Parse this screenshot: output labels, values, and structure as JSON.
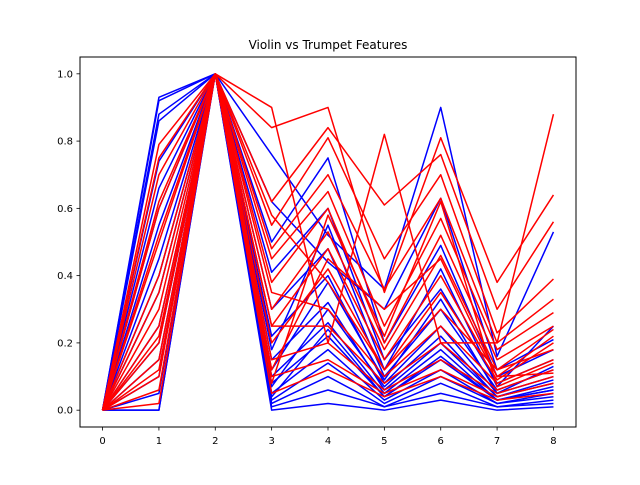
{
  "chart_data": {
    "type": "line",
    "title": "Violin vs Trumpet Features",
    "xlabel": "",
    "ylabel": "",
    "x": [
      0,
      1,
      2,
      3,
      4,
      5,
      6,
      7,
      8
    ],
    "xlim": [
      -0.4,
      8.4
    ],
    "ylim": [
      -0.05,
      1.05
    ],
    "x_ticks": [
      "0",
      "1",
      "2",
      "3",
      "4",
      "5",
      "6",
      "7",
      "8"
    ],
    "y_ticks": [
      "0.0",
      "0.2",
      "0.4",
      "0.6",
      "0.8",
      "1.0"
    ],
    "grid": false,
    "legend": "none",
    "colors": {
      "violin": "#0000ff",
      "trumpet": "#ff0000",
      "axes": "#000000",
      "background": "#ffffff"
    },
    "series": [
      {
        "color": "blue",
        "values": [
          0.0,
          0.93,
          1.0,
          0.76,
          0.52,
          0.36,
          0.9,
          0.16,
          0.53
        ]
      },
      {
        "color": "blue",
        "values": [
          0.0,
          0.92,
          1.0,
          0.62,
          0.44,
          0.3,
          0.63,
          0.12,
          0.21
        ]
      },
      {
        "color": "blue",
        "values": [
          0.0,
          0.88,
          1.0,
          0.5,
          0.75,
          0.2,
          0.49,
          0.1,
          0.18
        ]
      },
      {
        "color": "blue",
        "values": [
          0.0,
          0.86,
          1.0,
          0.41,
          0.6,
          0.15,
          0.36,
          0.08,
          0.15
        ]
      },
      {
        "color": "blue",
        "values": [
          0.0,
          0.74,
          1.0,
          0.3,
          0.48,
          0.1,
          0.3,
          0.06,
          0.12
        ]
      },
      {
        "color": "blue",
        "values": [
          0.0,
          0.66,
          1.0,
          0.22,
          0.4,
          0.08,
          0.25,
          0.05,
          0.1
        ]
      },
      {
        "color": "blue",
        "values": [
          0.0,
          0.55,
          1.0,
          0.15,
          0.32,
          0.06,
          0.2,
          0.04,
          0.08
        ]
      },
      {
        "color": "blue",
        "values": [
          0.0,
          0.45,
          1.0,
          0.1,
          0.26,
          0.05,
          0.18,
          0.03,
          0.07
        ]
      },
      {
        "color": "blue",
        "values": [
          0.0,
          0.35,
          1.0,
          0.08,
          0.22,
          0.04,
          0.15,
          0.03,
          0.06
        ]
      },
      {
        "color": "blue",
        "values": [
          0.0,
          0.25,
          1.0,
          0.05,
          0.18,
          0.03,
          0.12,
          0.02,
          0.05
        ]
      },
      {
        "color": "blue",
        "values": [
          0.0,
          0.15,
          1.0,
          0.03,
          0.14,
          0.02,
          0.1,
          0.02,
          0.04
        ]
      },
      {
        "color": "blue",
        "values": [
          0.0,
          0.05,
          1.0,
          0.02,
          0.1,
          0.01,
          0.08,
          0.01,
          0.03
        ]
      },
      {
        "color": "blue",
        "values": [
          0.0,
          0.0,
          1.0,
          0.01,
          0.06,
          0.01,
          0.05,
          0.01,
          0.02
        ]
      },
      {
        "color": "blue",
        "values": [
          0.0,
          0.0,
          1.0,
          0.0,
          0.02,
          0.0,
          0.03,
          0.0,
          0.01
        ]
      },
      {
        "color": "blue",
        "values": [
          0.0,
          0.6,
          1.0,
          0.18,
          0.55,
          0.12,
          0.42,
          0.07,
          0.25
        ]
      },
      {
        "color": "blue",
        "values": [
          0.0,
          0.4,
          1.0,
          0.12,
          0.38,
          0.09,
          0.33,
          0.05,
          0.13
        ]
      },
      {
        "color": "blue",
        "values": [
          0.0,
          0.2,
          1.0,
          0.07,
          0.3,
          0.07,
          0.22,
          0.04,
          0.09
        ]
      },
      {
        "color": "blue",
        "values": [
          0.0,
          0.1,
          1.0,
          0.04,
          0.24,
          0.04,
          0.16,
          0.03,
          0.06
        ]
      },
      {
        "color": "red",
        "values": [
          0.0,
          0.79,
          1.0,
          0.9,
          0.2,
          0.82,
          0.2,
          0.2,
          0.88
        ]
      },
      {
        "color": "red",
        "values": [
          0.0,
          0.75,
          1.0,
          0.84,
          0.9,
          0.35,
          0.81,
          0.38,
          0.64
        ]
      },
      {
        "color": "red",
        "values": [
          0.0,
          0.7,
          1.0,
          0.62,
          0.84,
          0.61,
          0.76,
          0.3,
          0.56
        ]
      },
      {
        "color": "red",
        "values": [
          0.0,
          0.6,
          1.0,
          0.55,
          0.81,
          0.45,
          0.7,
          0.23,
          0.39
        ]
      },
      {
        "color": "red",
        "values": [
          0.0,
          0.5,
          1.0,
          0.48,
          0.7,
          0.36,
          0.63,
          0.2,
          0.33
        ]
      },
      {
        "color": "red",
        "values": [
          0.0,
          0.4,
          1.0,
          0.45,
          0.65,
          0.25,
          0.57,
          0.18,
          0.29
        ]
      },
      {
        "color": "red",
        "values": [
          0.0,
          0.3,
          1.0,
          0.38,
          0.6,
          0.2,
          0.52,
          0.15,
          0.25
        ]
      },
      {
        "color": "red",
        "values": [
          0.0,
          0.2,
          1.0,
          0.3,
          0.53,
          0.18,
          0.46,
          0.12,
          0.24
        ]
      },
      {
        "color": "red",
        "values": [
          0.0,
          0.15,
          1.0,
          0.25,
          0.48,
          0.15,
          0.4,
          0.1,
          0.22
        ]
      },
      {
        "color": "red",
        "values": [
          0.0,
          0.1,
          1.0,
          0.2,
          0.42,
          0.12,
          0.35,
          0.09,
          0.2
        ]
      },
      {
        "color": "red",
        "values": [
          0.0,
          0.62,
          1.0,
          0.58,
          0.38,
          0.12,
          0.3,
          0.12,
          0.18
        ]
      },
      {
        "color": "red",
        "values": [
          0.0,
          0.52,
          1.0,
          0.35,
          0.3,
          0.1,
          0.25,
          0.08,
          0.15
        ]
      },
      {
        "color": "red",
        "values": [
          0.0,
          0.22,
          1.0,
          0.25,
          0.25,
          0.08,
          0.2,
          0.06,
          0.12
        ]
      },
      {
        "color": "red",
        "values": [
          0.0,
          0.12,
          1.0,
          0.15,
          0.2,
          0.06,
          0.15,
          0.05,
          0.1
        ]
      },
      {
        "color": "red",
        "values": [
          0.0,
          0.06,
          1.0,
          0.1,
          0.15,
          0.05,
          0.12,
          0.04,
          0.08
        ]
      },
      {
        "color": "red",
        "values": [
          0.0,
          0.02,
          1.0,
          0.05,
          0.12,
          0.04,
          0.1,
          0.03,
          0.05
        ]
      },
      {
        "color": "red",
        "values": [
          0.0,
          0.35,
          1.0,
          0.12,
          0.45,
          0.3,
          0.45,
          0.1,
          0.11
        ]
      },
      {
        "color": "red",
        "values": [
          0.0,
          0.25,
          1.0,
          0.08,
          0.58,
          0.22,
          0.62,
          0.07,
          0.14
        ]
      }
    ]
  }
}
